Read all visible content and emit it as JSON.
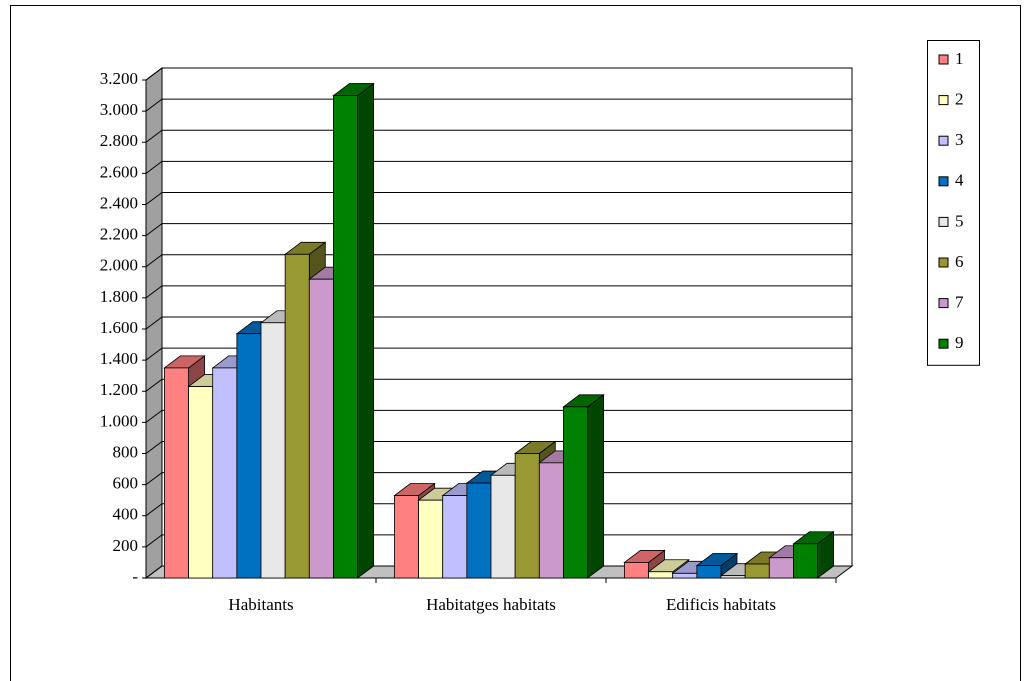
{
  "chart_data": {
    "type": "bar3d",
    "categories": [
      "Habitants",
      "Habitatges habitats",
      "Edificis habitats"
    ],
    "series": [
      {
        "name": "1",
        "color": "#ff8080",
        "values": [
          1350,
          530,
          100
        ]
      },
      {
        "name": "2",
        "color": "#ffffc0",
        "values": [
          1230,
          500,
          40
        ]
      },
      {
        "name": "3",
        "color": "#c0c0ff",
        "values": [
          1350,
          530,
          30
        ]
      },
      {
        "name": "4",
        "color": "#0070c0",
        "values": [
          1570,
          610,
          80
        ]
      },
      {
        "name": "5",
        "color": "#e8e8e8",
        "values": [
          1640,
          660,
          15
        ]
      },
      {
        "name": "6",
        "color": "#999933",
        "values": [
          2080,
          800,
          90
        ]
      },
      {
        "name": "7",
        "color": "#cc99cc",
        "values": [
          1920,
          740,
          130
        ]
      },
      {
        "name": "9",
        "color": "#008000",
        "values": [
          3100,
          1100,
          220
        ]
      }
    ],
    "ylim": [
      0,
      3200
    ],
    "yticks": [
      {
        "value": 0,
        "label": "-"
      },
      200,
      400,
      600,
      800,
      {
        "value": 1000,
        "label": "1.000"
      },
      {
        "value": 1200,
        "label": "1.200"
      },
      {
        "value": 1400,
        "label": "1.400"
      },
      {
        "value": 1600,
        "label": "1.600"
      },
      {
        "value": 1800,
        "label": "1.800"
      },
      {
        "value": 2000,
        "label": "2.000"
      },
      {
        "value": 2200,
        "label": "2.200"
      },
      {
        "value": 2400,
        "label": "2.400"
      },
      {
        "value": 2600,
        "label": "2.600"
      },
      {
        "value": 2800,
        "label": "2.800"
      },
      {
        "value": 3000,
        "label": "3.000"
      },
      {
        "value": 3200,
        "label": "3.200"
      }
    ],
    "grid": true,
    "legend": "right"
  }
}
